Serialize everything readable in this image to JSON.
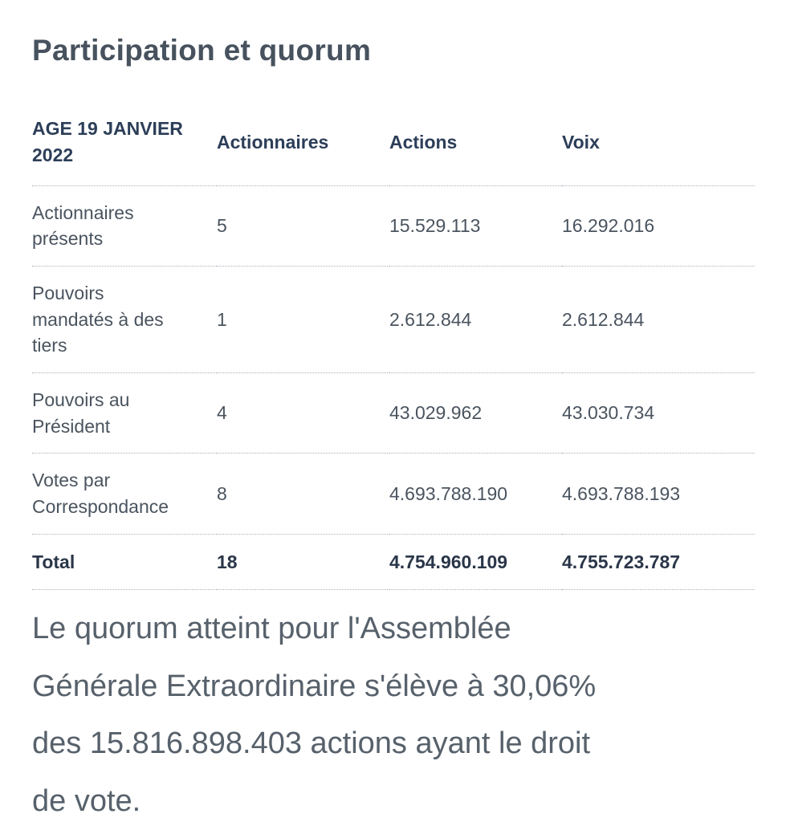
{
  "colors": {
    "title": "#47525e",
    "header": "#2c3e58",
    "cell": "#4a545f",
    "total": "#2a3648",
    "paragraph": "#57616b",
    "divider": "#a9b2bb"
  },
  "page": {
    "title": "Participation et quorum"
  },
  "table": {
    "columns": [
      "AGE 19 JANVIER 2022",
      "Actionnaires",
      "Actions",
      "Voix"
    ],
    "rows": [
      {
        "label": "Actionnaires présents",
        "actionnaires": "5",
        "actions": "15.529.113",
        "voix": "16.292.016"
      },
      {
        "label": "Pouvoirs mandatés à des tiers",
        "actionnaires": "1",
        "actions": "2.612.844",
        "voix": "2.612.844"
      },
      {
        "label": "Pouvoirs au Président",
        "actionnaires": "4",
        "actions": "43.029.962",
        "voix": "43.030.734"
      },
      {
        "label": "Votes par Correspondance",
        "actionnaires": "8",
        "actions": "4.693.788.190",
        "voix": "4.693.788.193"
      }
    ],
    "total_row": {
      "label": "Total",
      "actionnaires": "18",
      "actions": "4.754.960.109",
      "voix": "4.755.723.787"
    }
  },
  "quorum_paragraph": "Le quorum atteint pour l'Assemblée Générale Extraordinaire s'élève à 30,06% des 15.816.898.403 actions ayant le droit de vote."
}
